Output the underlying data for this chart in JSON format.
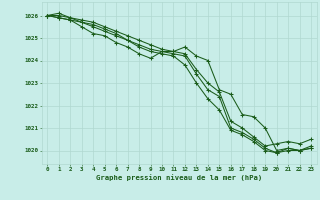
{
  "title": "Graphe pression niveau de la mer (hPa)",
  "bg_color": "#c8ede8",
  "grid_color": "#b0d8d0",
  "line_color": "#1a5c1a",
  "xlim": [
    -0.5,
    23.5
  ],
  "ylim": [
    1019.4,
    1026.6
  ],
  "yticks": [
    1020,
    1021,
    1022,
    1023,
    1024,
    1025,
    1026
  ],
  "xticks": [
    0,
    1,
    2,
    3,
    4,
    5,
    6,
    7,
    8,
    9,
    10,
    11,
    12,
    13,
    14,
    15,
    16,
    17,
    18,
    19,
    20,
    21,
    22,
    23
  ],
  "series": [
    [
      1026.0,
      1025.9,
      1025.8,
      1025.5,
      1025.2,
      1025.1,
      1024.8,
      1024.6,
      1024.3,
      1024.1,
      1024.4,
      1024.4,
      1024.6,
      1024.2,
      1024.0,
      1022.7,
      1022.5,
      1021.6,
      1021.5,
      1021.0,
      1020.0,
      1020.1,
      1020.0,
      1020.1
    ],
    [
      1026.0,
      1026.0,
      1025.9,
      1025.7,
      1025.5,
      1025.3,
      1025.1,
      1024.9,
      1024.7,
      1024.5,
      1024.4,
      1024.3,
      1024.2,
      1023.4,
      1022.7,
      1022.4,
      1021.0,
      1020.8,
      1020.5,
      1020.1,
      1019.9,
      1020.0,
      1020.0,
      1020.2
    ],
    [
      1026.0,
      1026.1,
      1025.9,
      1025.8,
      1025.7,
      1025.5,
      1025.3,
      1025.1,
      1024.9,
      1024.7,
      1024.5,
      1024.4,
      1024.3,
      1023.6,
      1023.0,
      1022.6,
      1021.3,
      1021.0,
      1020.6,
      1020.2,
      1020.3,
      1020.4,
      1020.3,
      1020.5
    ],
    [
      1026.0,
      1025.9,
      1025.8,
      1025.7,
      1025.6,
      1025.4,
      1025.2,
      1024.9,
      1024.6,
      1024.4,
      1024.3,
      1024.2,
      1023.8,
      1023.0,
      1022.3,
      1021.8,
      1020.9,
      1020.7,
      1020.4,
      1020.0,
      1019.9,
      1020.1,
      1020.0,
      1020.1
    ]
  ]
}
